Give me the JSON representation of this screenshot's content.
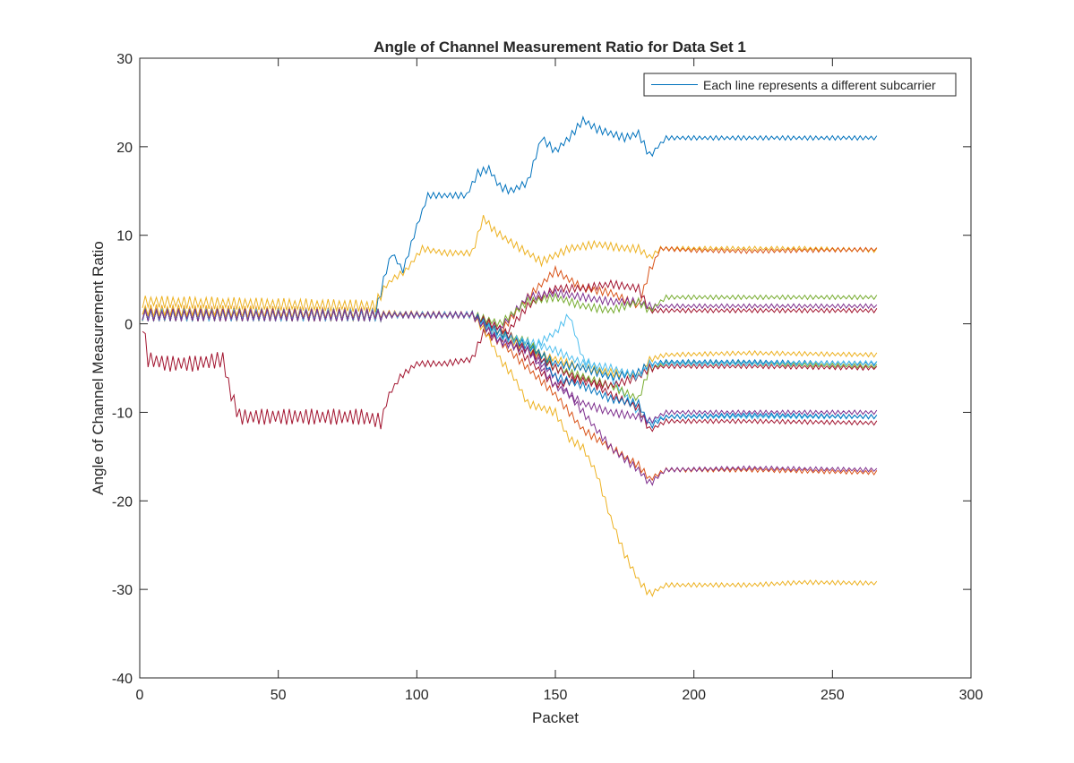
{
  "chart_data": {
    "type": "line",
    "title": "Angle of Channel Measurement Ratio for Data Set 1",
    "xlabel": "Packet",
    "ylabel": "Angle of Channel Measurement Ratio",
    "xlim": [
      0,
      300
    ],
    "ylim": [
      -40,
      30
    ],
    "x_ticks": [
      0,
      50,
      100,
      150,
      200,
      250,
      300
    ],
    "y_ticks": [
      -40,
      -30,
      -20,
      -10,
      0,
      10,
      20,
      30
    ],
    "x_tick_labels": [
      "0",
      "50",
      "100",
      "150",
      "200",
      "250",
      "300"
    ],
    "y_tick_labels": [
      "-40",
      "-30",
      "-20",
      "-10",
      "0",
      "10",
      "20",
      "30"
    ],
    "grid": false,
    "legend": {
      "position": "top-right",
      "entries": [
        "Each line represents a different subcarrier"
      ]
    },
    "colors": [
      "#0072bd",
      "#d95319",
      "#edb120",
      "#7e2f8e",
      "#77ac30",
      "#4dbeee",
      "#a2142f"
    ],
    "x_range": [
      1,
      266
    ],
    "series": [
      {
        "color": "#0072bd",
        "points": [
          [
            1,
            1
          ],
          [
            85,
            1
          ],
          [
            88,
            5
          ],
          [
            91,
            8
          ],
          [
            95,
            6
          ],
          [
            100,
            11
          ],
          [
            104,
            14.5
          ],
          [
            112,
            14.5
          ],
          [
            118,
            14.5
          ],
          [
            122,
            17
          ],
          [
            126,
            17.5
          ],
          [
            130,
            15.5
          ],
          [
            134,
            15
          ],
          [
            140,
            16
          ],
          [
            145,
            21
          ],
          [
            150,
            19.5
          ],
          [
            155,
            21
          ],
          [
            160,
            23
          ],
          [
            165,
            22
          ],
          [
            170,
            21.5
          ],
          [
            175,
            21
          ],
          [
            180,
            21.5
          ],
          [
            184,
            19
          ],
          [
            190,
            21
          ],
          [
            200,
            21
          ],
          [
            220,
            21
          ],
          [
            240,
            21
          ],
          [
            266,
            21
          ]
        ]
      },
      {
        "color": "#edb120",
        "points": [
          [
            1,
            2.5
          ],
          [
            85,
            2
          ],
          [
            88,
            4
          ],
          [
            91,
            5
          ],
          [
            96,
            6
          ],
          [
            102,
            8.5
          ],
          [
            110,
            8
          ],
          [
            120,
            8
          ],
          [
            124,
            12
          ],
          [
            128,
            10.5
          ],
          [
            135,
            9
          ],
          [
            145,
            7
          ],
          [
            155,
            8.5
          ],
          [
            165,
            9
          ],
          [
            175,
            8.5
          ],
          [
            180,
            8.5
          ],
          [
            184,
            7.5
          ],
          [
            188,
            8.5
          ],
          [
            200,
            8.5
          ],
          [
            220,
            8.5
          ],
          [
            240,
            8.5
          ],
          [
            266,
            8.3
          ]
        ]
      },
      {
        "color": "#d95319",
        "points": [
          [
            1,
            1.5
          ],
          [
            120,
            1
          ],
          [
            130,
            -1
          ],
          [
            140,
            3
          ],
          [
            150,
            6
          ],
          [
            160,
            4
          ],
          [
            170,
            3.5
          ],
          [
            180,
            2
          ],
          [
            184,
            6
          ],
          [
            188,
            8.5
          ],
          [
            200,
            8.3
          ],
          [
            220,
            8.2
          ],
          [
            240,
            8.3
          ],
          [
            266,
            8.4
          ]
        ]
      },
      {
        "color": "#a2142f",
        "points": [
          [
            1,
            0
          ],
          [
            3,
            -4
          ],
          [
            10,
            -4.5
          ],
          [
            20,
            -4.5
          ],
          [
            30,
            -4
          ],
          [
            33,
            -8
          ],
          [
            36,
            -10.5
          ],
          [
            60,
            -10.5
          ],
          [
            80,
            -10.5
          ],
          [
            87,
            -11
          ],
          [
            90,
            -8
          ],
          [
            94,
            -6
          ],
          [
            100,
            -4.5
          ],
          [
            110,
            -4.5
          ],
          [
            120,
            -4
          ],
          [
            124,
            -1
          ],
          [
            130,
            -2
          ],
          [
            140,
            2
          ],
          [
            150,
            4
          ],
          [
            160,
            4
          ],
          [
            170,
            4.5
          ],
          [
            180,
            4
          ],
          [
            184,
            1.5
          ],
          [
            188,
            1.5
          ],
          [
            200,
            1.5
          ],
          [
            230,
            1.5
          ],
          [
            266,
            1.5
          ]
        ]
      },
      {
        "color": "#7e2f8e",
        "points": [
          [
            1,
            1
          ],
          [
            120,
            1
          ],
          [
            130,
            -0.5
          ],
          [
            140,
            3
          ],
          [
            150,
            3.5
          ],
          [
            160,
            3
          ],
          [
            170,
            2.5
          ],
          [
            180,
            2.5
          ],
          [
            184,
            2
          ],
          [
            190,
            2
          ],
          [
            220,
            2
          ],
          [
            266,
            2
          ]
        ]
      },
      {
        "color": "#77ac30",
        "points": [
          [
            1,
            1
          ],
          [
            120,
            1
          ],
          [
            130,
            0
          ],
          [
            140,
            2.5
          ],
          [
            150,
            3
          ],
          [
            160,
            2
          ],
          [
            170,
            1.5
          ],
          [
            180,
            2.5
          ],
          [
            184,
            1.5
          ],
          [
            190,
            3
          ],
          [
            220,
            3
          ],
          [
            266,
            3
          ]
        ]
      },
      {
        "color": "#4dbeee",
        "points": [
          [
            1,
            1
          ],
          [
            120,
            1
          ],
          [
            130,
            -2
          ],
          [
            140,
            -3
          ],
          [
            150,
            -1
          ],
          [
            155,
            1
          ],
          [
            160,
            -4
          ],
          [
            170,
            -6
          ],
          [
            180,
            -10
          ],
          [
            184,
            -11
          ],
          [
            190,
            -10.5
          ],
          [
            220,
            -10.5
          ],
          [
            266,
            -10.5
          ]
        ]
      },
      {
        "color": "#edb120",
        "points": [
          [
            1,
            1.5
          ],
          [
            120,
            1
          ],
          [
            125,
            -1
          ],
          [
            130,
            -4
          ],
          [
            135,
            -6
          ],
          [
            140,
            -9
          ],
          [
            150,
            -10
          ],
          [
            155,
            -13
          ],
          [
            160,
            -14
          ],
          [
            165,
            -17
          ],
          [
            170,
            -22
          ],
          [
            175,
            -26
          ],
          [
            180,
            -29
          ],
          [
            184,
            -30.5
          ],
          [
            190,
            -29.5
          ],
          [
            220,
            -29.5
          ],
          [
            240,
            -29.2
          ],
          [
            266,
            -29.3
          ]
        ]
      },
      {
        "color": "#d95319",
        "points": [
          [
            1,
            1
          ],
          [
            120,
            1
          ],
          [
            130,
            -2
          ],
          [
            140,
            -5
          ],
          [
            150,
            -8
          ],
          [
            160,
            -12
          ],
          [
            170,
            -14
          ],
          [
            180,
            -16
          ],
          [
            184,
            -17.5
          ],
          [
            190,
            -16.5
          ],
          [
            220,
            -16.5
          ],
          [
            266,
            -16.8
          ]
        ]
      },
      {
        "color": "#7e2f8e",
        "points": [
          [
            1,
            1
          ],
          [
            120,
            1
          ],
          [
            130,
            -2
          ],
          [
            140,
            -3
          ],
          [
            150,
            -6
          ],
          [
            160,
            -10
          ],
          [
            170,
            -14
          ],
          [
            180,
            -16.5
          ],
          [
            184,
            -18
          ],
          [
            190,
            -16.5
          ],
          [
            220,
            -16.3
          ],
          [
            266,
            -16.5
          ]
        ]
      },
      {
        "color": "#a2142f",
        "points": [
          [
            1,
            1
          ],
          [
            120,
            1
          ],
          [
            130,
            -1
          ],
          [
            140,
            -4
          ],
          [
            150,
            -7
          ],
          [
            160,
            -6
          ],
          [
            170,
            -8
          ],
          [
            180,
            -9.5
          ],
          [
            184,
            -12
          ],
          [
            190,
            -11
          ],
          [
            220,
            -11
          ],
          [
            266,
            -11.2
          ]
        ]
      },
      {
        "color": "#0072bd",
        "points": [
          [
            1,
            1
          ],
          [
            120,
            1
          ],
          [
            130,
            -1.5
          ],
          [
            140,
            -2
          ],
          [
            150,
            -6
          ],
          [
            160,
            -7
          ],
          [
            170,
            -8.5
          ],
          [
            180,
            -9
          ],
          [
            184,
            -11.5
          ],
          [
            190,
            -10.5
          ],
          [
            220,
            -10.3
          ],
          [
            266,
            -10.5
          ]
        ]
      },
      {
        "color": "#77ac30",
        "points": [
          [
            1,
            1
          ],
          [
            120,
            1
          ],
          [
            130,
            -1
          ],
          [
            140,
            -2
          ],
          [
            150,
            -5
          ],
          [
            160,
            -6
          ],
          [
            170,
            -7
          ],
          [
            180,
            -8.5
          ],
          [
            184,
            -5
          ],
          [
            190,
            -4.5
          ],
          [
            220,
            -4.5
          ],
          [
            266,
            -4.8
          ]
        ]
      },
      {
        "color": "#edb120",
        "points": [
          [
            1,
            1
          ],
          [
            120,
            1
          ],
          [
            130,
            -1
          ],
          [
            140,
            -3
          ],
          [
            150,
            -4
          ],
          [
            160,
            -5
          ],
          [
            170,
            -5.5
          ],
          [
            180,
            -6
          ],
          [
            184,
            -4
          ],
          [
            190,
            -3.5
          ],
          [
            220,
            -3.3
          ],
          [
            266,
            -3.5
          ]
        ]
      },
      {
        "color": "#a2142f",
        "points": [
          [
            1,
            1
          ],
          [
            120,
            1
          ],
          [
            130,
            -0.5
          ],
          [
            140,
            -3
          ],
          [
            150,
            -5
          ],
          [
            160,
            -6.5
          ],
          [
            170,
            -7
          ],
          [
            180,
            -6
          ],
          [
            184,
            -5
          ],
          [
            190,
            -4.8
          ],
          [
            220,
            -4.8
          ],
          [
            266,
            -5
          ]
        ]
      },
      {
        "color": "#0072bd",
        "points": [
          [
            1,
            1
          ],
          [
            120,
            1
          ],
          [
            130,
            -1
          ],
          [
            140,
            -2.5
          ],
          [
            150,
            -4.5
          ],
          [
            160,
            -5
          ],
          [
            170,
            -6
          ],
          [
            180,
            -5.5
          ],
          [
            184,
            -4.5
          ],
          [
            190,
            -4.3
          ],
          [
            220,
            -4.3
          ],
          [
            266,
            -4.5
          ]
        ]
      },
      {
        "color": "#4dbeee",
        "points": [
          [
            1,
            1
          ],
          [
            120,
            1
          ],
          [
            130,
            -1.5
          ],
          [
            140,
            -2
          ],
          [
            150,
            -3
          ],
          [
            160,
            -4.5
          ],
          [
            170,
            -5
          ],
          [
            180,
            -6
          ],
          [
            184,
            -4.5
          ],
          [
            190,
            -4.5
          ],
          [
            220,
            -4.5
          ],
          [
            266,
            -4.4
          ]
        ]
      },
      {
        "color": "#7e2f8e",
        "points": [
          [
            1,
            1
          ],
          [
            120,
            1
          ],
          [
            130,
            -2
          ],
          [
            140,
            -3
          ],
          [
            150,
            -7
          ],
          [
            160,
            -9
          ],
          [
            170,
            -10
          ],
          [
            180,
            -10.5
          ],
          [
            184,
            -11
          ],
          [
            190,
            -10
          ],
          [
            220,
            -10
          ],
          [
            266,
            -10
          ]
        ]
      }
    ]
  }
}
